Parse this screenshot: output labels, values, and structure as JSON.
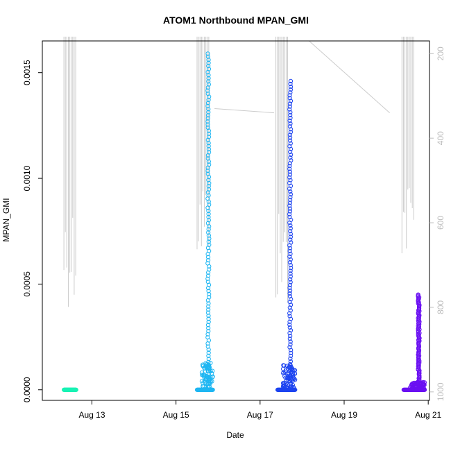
{
  "chart_data": {
    "type": "scatter",
    "title": "ATOM1 Northbound MPAN_GMI",
    "xlabel": "Date",
    "ylabel": "MPAN_GMI",
    "xlim": [
      "Aug 11",
      "Aug 21"
    ],
    "ylim": [
      0,
      0.00165
    ],
    "y_ticks": [
      "0.0000",
      "0.0005",
      "0.0010",
      "0.0015"
    ],
    "x_ticks": [
      "Aug 13",
      "Aug 15",
      "Aug 17",
      "Aug 19",
      "Aug 21"
    ],
    "right_axis": {
      "ticks": [
        "200",
        "400",
        "600",
        "800",
        "1000"
      ],
      "inverted": true,
      "color": "#bdbdbd",
      "range": [
        1020,
        170
      ]
    },
    "grid": false,
    "legend": "none",
    "series": [
      {
        "color": "#19f2b4",
        "x_range": [
          "Aug 12 08:00",
          "Aug 12 15:00"
        ],
        "max_value": 0.0
      },
      {
        "color": "#1fb6f2",
        "x_range": [
          "Aug 15 12:00",
          "Aug 15 21:00"
        ],
        "max_value": 0.00159
      },
      {
        "color": "#1d44f0",
        "x_range": [
          "Aug 17 10:00",
          "Aug 17 20:00"
        ],
        "max_value": 0.00146
      },
      {
        "color": "#6a10f2",
        "x_range": [
          "Aug 20 10:00",
          "Aug 20 22:00"
        ],
        "max_value": 0.00045
      }
    ],
    "depth_trace": {
      "color": "#cccccc",
      "groups": [
        {
          "center": "Aug 12 08:00",
          "min_depth": 160,
          "max_depth": 800
        },
        {
          "center": "Aug 15 12:00",
          "min_depth": 160,
          "max_depth": 700
        },
        {
          "center": "Aug 17 09:00",
          "min_depth": 160,
          "max_depth": 810
        },
        {
          "center": "Aug 20 09:00",
          "min_depth": 160,
          "max_depth": 700
        }
      ],
      "connectors": [
        {
          "from": [
            "Aug 15 22:00",
            330
          ],
          "to": [
            "Aug 17 08:00",
            340
          ]
        },
        {
          "from": [
            "Aug 18 04:00",
            170
          ],
          "to": [
            "Aug 20 02:00",
            340
          ]
        }
      ]
    }
  }
}
